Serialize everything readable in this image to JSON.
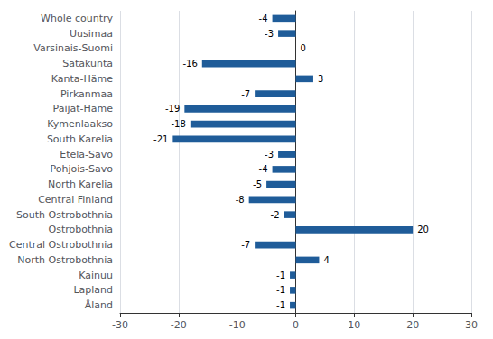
{
  "chart_data": {
    "type": "bar",
    "orientation": "horizontal",
    "categories": [
      "Åland",
      "Lapland",
      "Kainuu",
      "North Ostrobothnia",
      "Central Ostrobothnia",
      "Ostrobothnia",
      "South Ostrobothnia",
      "Central Finland",
      "North Karelia",
      "Pohjois-Savo",
      "Etelä-Savo",
      "South Karelia",
      "Kymenlaakso",
      "Päijät-Häme",
      "Pirkanmaa",
      "Kanta-Häme",
      "Satakunta",
      "Varsinais-Suomi",
      "Uusimaa",
      "Whole country"
    ],
    "values": [
      -1,
      -1,
      -1,
      4,
      -7,
      20,
      -2,
      -8,
      -5,
      -4,
      -3,
      -21,
      -18,
      -19,
      -7,
      3,
      -16,
      0,
      -3,
      -4
    ],
    "color": "#1F5C99",
    "xlim": [
      -30,
      30
    ],
    "xticks": [
      -30,
      -20,
      -10,
      0,
      10,
      20,
      30
    ],
    "grid": true,
    "data_labels": true
  }
}
